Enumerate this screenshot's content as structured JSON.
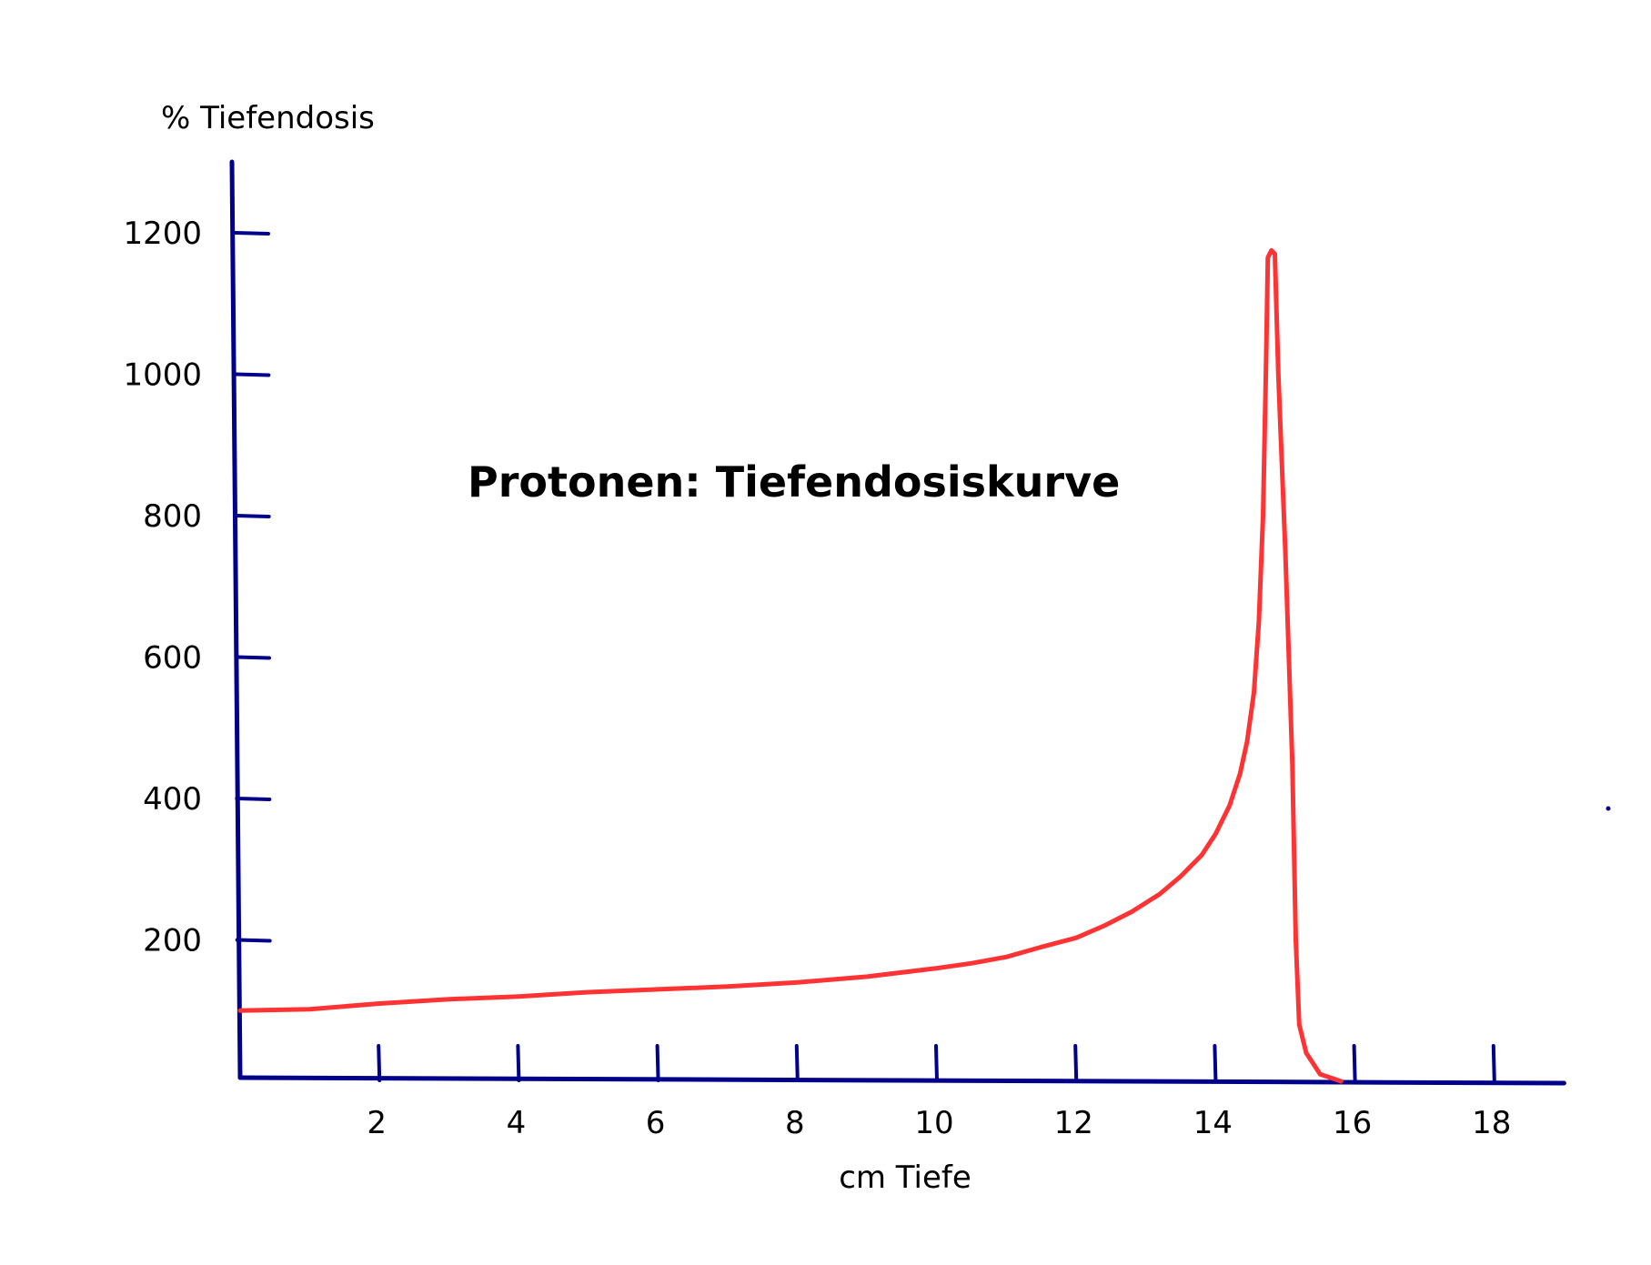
{
  "chart_data": {
    "type": "line",
    "title": "Protonen: Tiefendosiskurve",
    "xlabel": "cm Tiefe",
    "ylabel": "% Tiefendosis",
    "xlim": [
      0,
      19
    ],
    "ylim": [
      0,
      1200
    ],
    "grid": false,
    "legend": "none",
    "x_ticks": [
      2,
      4,
      6,
      8,
      10,
      12,
      14,
      16,
      18
    ],
    "y_ticks": [
      200,
      400,
      600,
      800,
      1000,
      1200
    ],
    "colors": {
      "axis": "#00008b",
      "curve": "#ff3333"
    },
    "series": [
      {
        "x": [
          0,
          1,
          2,
          3,
          4,
          5,
          6,
          7,
          8,
          9,
          10,
          10.5,
          11,
          11.5,
          12,
          12.4,
          12.8,
          13.2,
          13.5,
          13.8,
          14.0,
          14.2,
          14.35,
          14.45,
          14.55,
          14.62,
          14.68,
          14.72,
          14.75,
          14.8,
          14.85,
          14.9,
          15.0,
          15.1,
          15.15,
          15.2,
          15.3,
          15.5,
          15.8
        ],
        "y": [
          100,
          102,
          110,
          116,
          120,
          126,
          130,
          134,
          140,
          148,
          160,
          167,
          176,
          190,
          203,
          220,
          240,
          265,
          290,
          320,
          350,
          390,
          435,
          480,
          550,
          650,
          800,
          1000,
          1165,
          1175,
          1170,
          1000,
          750,
          450,
          200,
          80,
          40,
          10,
          0
        ]
      }
    ]
  }
}
